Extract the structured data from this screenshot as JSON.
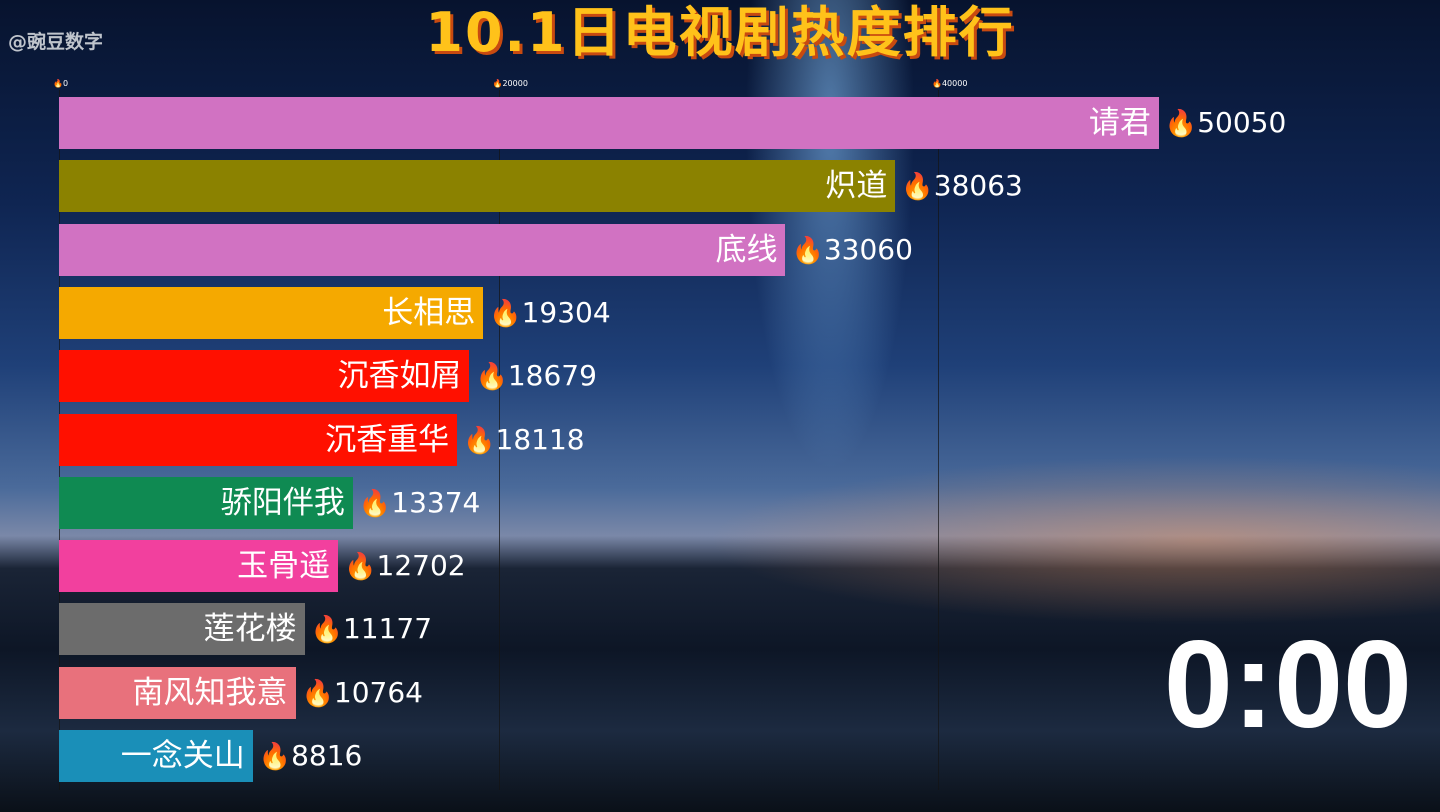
{
  "watermark": "@豌豆数字",
  "timer": "0:00",
  "chart_data": {
    "type": "bar",
    "orientation": "horizontal",
    "title": "10.1日电视剧热度排行",
    "xlim": [
      0,
      50050
    ],
    "xticks": [
      0,
      20000,
      40000
    ],
    "tick_labels": [
      "0",
      "20000",
      "40000"
    ],
    "grid": true,
    "value_prefix_icon": "fire-icon",
    "categories": [
      "请君",
      "炽道",
      "底线",
      "长相思",
      "沉香如屑",
      "沉香重华",
      "骄阳伴我",
      "玉骨遥",
      "莲花楼",
      "南风知我意",
      "一念关山"
    ],
    "values": [
      50050,
      38063,
      33060,
      19304,
      18679,
      18118,
      13374,
      12702,
      11177,
      10764,
      8816
    ],
    "colors": [
      "#d172c2",
      "#8b8200",
      "#d172c2",
      "#f5a900",
      "#ff1000",
      "#ff1000",
      "#0f8a52",
      "#f2409e",
      "#6c6c6c",
      "#e8717c",
      "#1a8fb8"
    ]
  }
}
